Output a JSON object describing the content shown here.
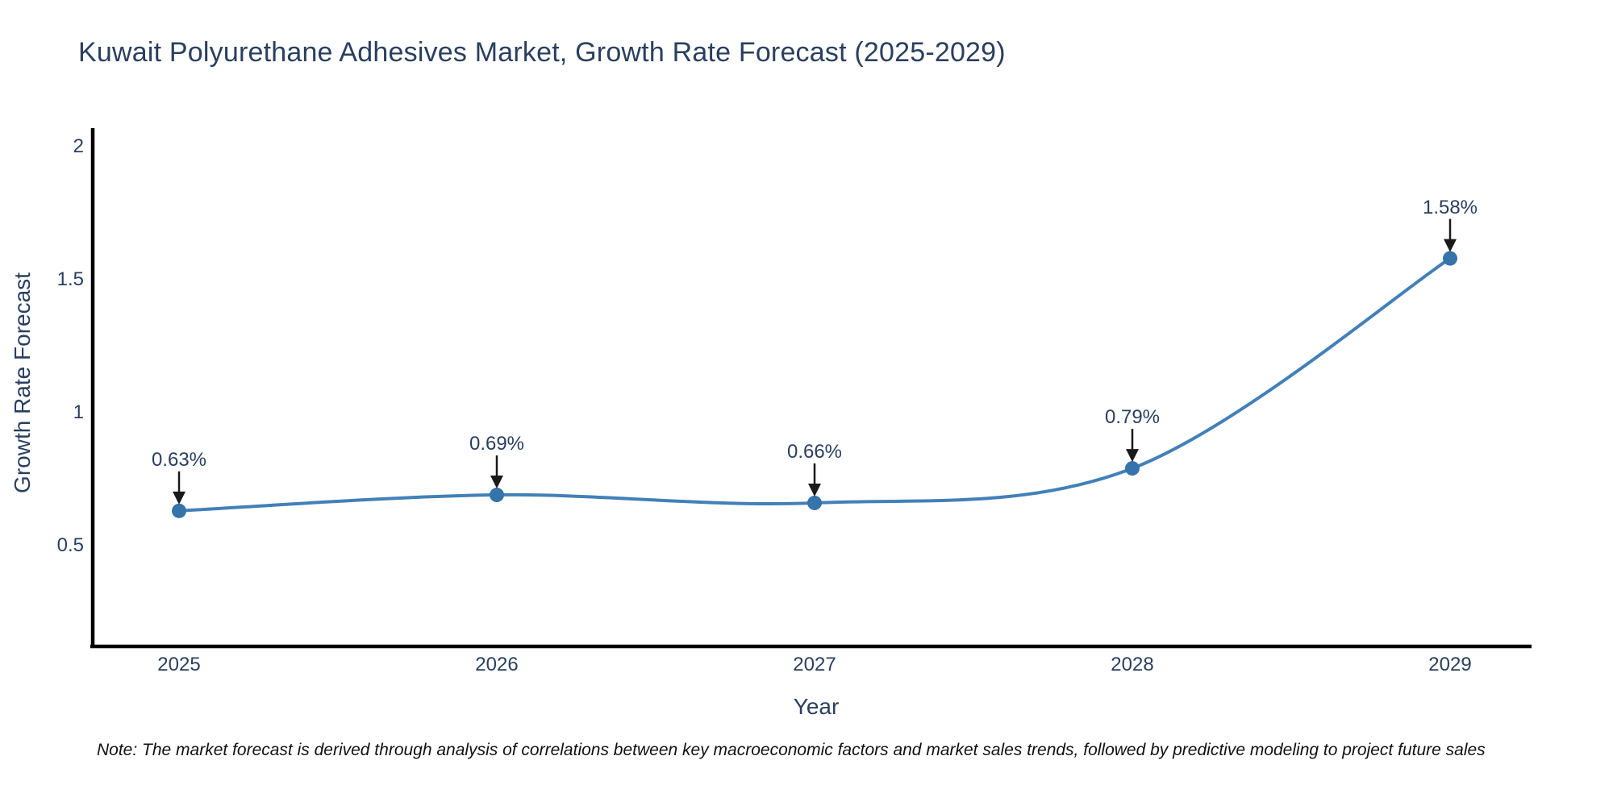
{
  "title": "Kuwait Polyurethane Adhesives Market, Growth Rate Forecast (2025-2029)",
  "note": "Note: The market forecast is derived through analysis of correlations between key macroeconomic factors and market sales trends, followed by predictive modeling to project future sales",
  "chart_data": {
    "type": "line",
    "title": "Kuwait Polyurethane Adhesives Market, Growth Rate Forecast (2025-2029)",
    "x": [
      "2025",
      "2026",
      "2027",
      "2028",
      "2029"
    ],
    "values": [
      0.63,
      0.69,
      0.66,
      0.79,
      1.58
    ],
    "point_labels": [
      "0.63%",
      "0.69%",
      "0.66%",
      "0.79%",
      "1.58%"
    ],
    "xlabel": "Year",
    "ylabel": "Growth Rate Forecast",
    "yticks": [
      0.5,
      1,
      1.5,
      2
    ],
    "ylim": [
      0.12,
      2.07
    ],
    "grid": false,
    "legend": false,
    "line_shape": "spline",
    "annotations_have_arrows": true,
    "colors": {
      "line": "#4280b8",
      "marker": "#3573ab",
      "axis_line": "#000000",
      "text": "#2a3f5f",
      "arrow": "#1a1a1a",
      "background": "#ffffff"
    }
  }
}
